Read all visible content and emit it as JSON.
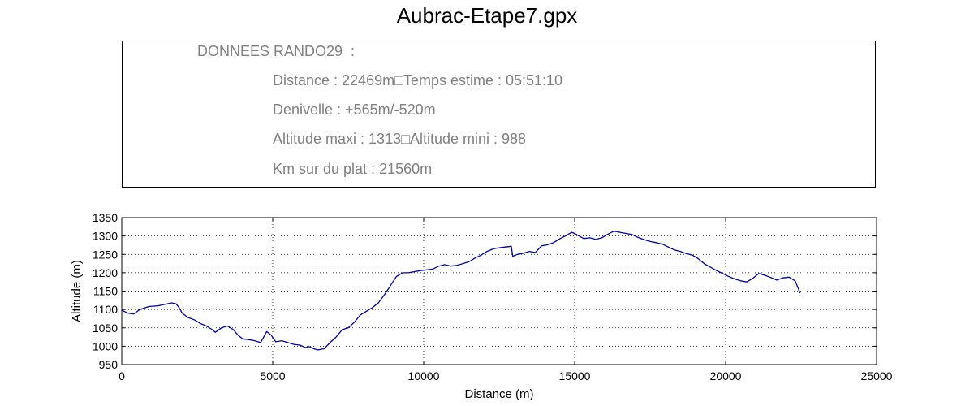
{
  "title": "Aubrac-Etape7.gpx",
  "info": {
    "heading": "DONNEES RANDO29  :",
    "distance_line": "Distance : 22469m□Temps estime : 05:51:10",
    "denivelle_line": "Denivelle : +565m/-520m",
    "altitude_line": "Altitude maxi : 1313□Altitude mini : 988",
    "plat_line": "Km sur du plat : 21560m"
  },
  "chart_data": {
    "type": "line",
    "title": "",
    "xlabel": "Distance (m)",
    "ylabel": "Altitude (m)",
    "xlim": [
      0,
      25000
    ],
    "ylim": [
      950,
      1350
    ],
    "xticks": [
      0,
      5000,
      10000,
      15000,
      20000,
      25000
    ],
    "yticks": [
      950,
      1000,
      1050,
      1100,
      1150,
      1200,
      1250,
      1300,
      1350
    ],
    "grid": true,
    "line_color": "#0000aa",
    "series": [
      {
        "x": [
          0,
          200,
          400,
          600,
          900,
          1200,
          1500,
          1650,
          1800,
          1900,
          2000,
          2200,
          2400,
          2600,
          2800,
          3000,
          3100,
          3300,
          3500,
          3700,
          3850,
          4000,
          4200,
          4400,
          4600,
          4800,
          4950,
          5100,
          5300,
          5500,
          5700,
          5900,
          6100,
          6200,
          6300,
          6400,
          6500,
          6700,
          6900,
          7100,
          7300,
          7500,
          7700,
          7900,
          8100,
          8300,
          8500,
          8700,
          8900,
          9100,
          9300,
          9500,
          9700,
          9900,
          10100,
          10300,
          10500,
          10700,
          10900,
          11100,
          11300,
          11500,
          11700,
          11900,
          12100,
          12300,
          12500,
          12700,
          12900,
          12950,
          13100,
          13300,
          13500,
          13700,
          13900,
          14100,
          14300,
          14500,
          14700,
          14900,
          15000,
          15100,
          15300,
          15500,
          15700,
          15900,
          16100,
          16300,
          16500,
          16700,
          16900,
          17100,
          17300,
          17500,
          17700,
          17900,
          18100,
          18300,
          18500,
          18700,
          18900,
          19100,
          19300,
          19500,
          19700,
          19900,
          20100,
          20300,
          20500,
          20700,
          20900,
          21100,
          21300,
          21500,
          21700,
          21900,
          22100,
          22300,
          22469
        ],
        "y": [
          1098,
          1090,
          1088,
          1100,
          1108,
          1110,
          1115,
          1118,
          1115,
          1105,
          1090,
          1078,
          1072,
          1062,
          1055,
          1045,
          1038,
          1050,
          1055,
          1045,
          1030,
          1020,
          1018,
          1015,
          1010,
          1040,
          1030,
          1012,
          1015,
          1010,
          1005,
          1003,
          996,
          999,
          995,
          992,
          990,
          993,
          1010,
          1025,
          1045,
          1050,
          1065,
          1085,
          1095,
          1105,
          1118,
          1140,
          1165,
          1190,
          1200,
          1200,
          1203,
          1206,
          1208,
          1210,
          1218,
          1222,
          1218,
          1220,
          1225,
          1230,
          1240,
          1248,
          1258,
          1265,
          1268,
          1270,
          1272,
          1245,
          1250,
          1253,
          1258,
          1255,
          1273,
          1276,
          1282,
          1292,
          1300,
          1310,
          1307,
          1302,
          1293,
          1295,
          1291,
          1295,
          1305,
          1313,
          1310,
          1307,
          1304,
          1296,
          1290,
          1285,
          1282,
          1278,
          1270,
          1262,
          1258,
          1252,
          1248,
          1238,
          1224,
          1215,
          1206,
          1198,
          1190,
          1183,
          1178,
          1175,
          1185,
          1198,
          1193,
          1187,
          1180,
          1186,
          1188,
          1178,
          1145
        ]
      }
    ]
  }
}
